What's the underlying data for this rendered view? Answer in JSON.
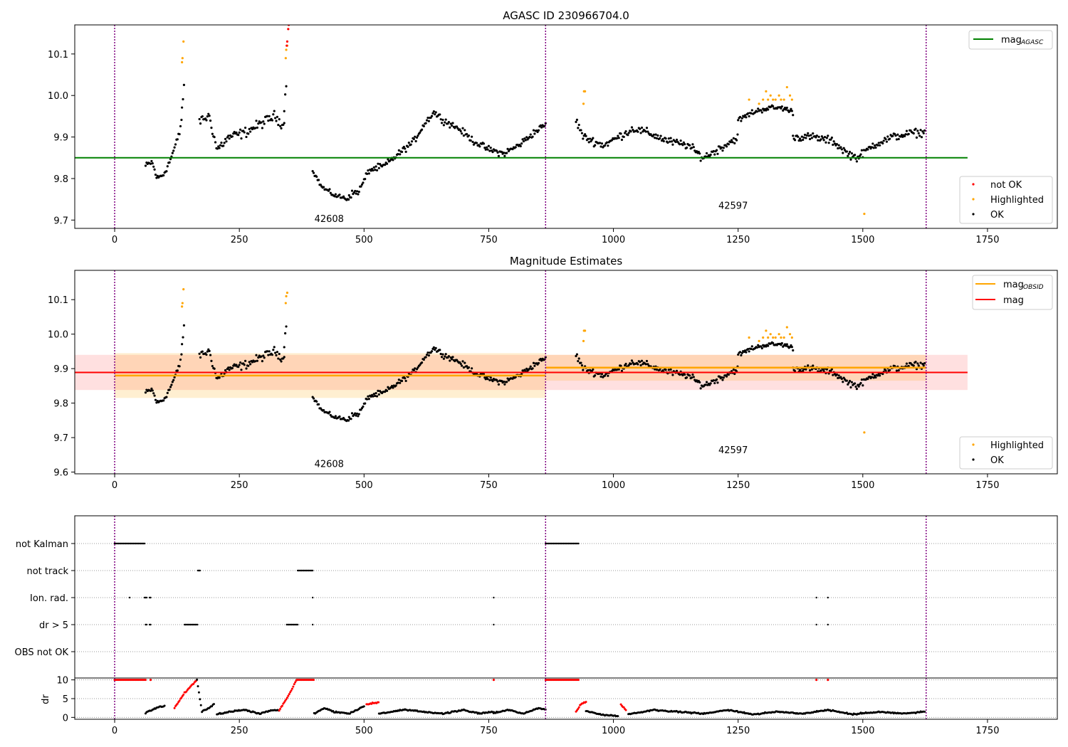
{
  "chart_data": [
    {
      "type": "scatter",
      "title": "AGASC ID 230966704.0",
      "xlabel": "",
      "ylabel": "",
      "xlim": [
        -80,
        1890
      ],
      "ylim": [
        9.68,
        10.17
      ],
      "xticks": [
        0,
        250,
        500,
        750,
        1000,
        1250,
        1500,
        1750
      ],
      "yticks": [
        9.7,
        9.8,
        9.9,
        10.0,
        10.1
      ],
      "grid": false,
      "obsid_boundaries": [
        0,
        864,
        1627
      ],
      "obsid_labels": [
        {
          "text": "42608",
          "x": 430,
          "y": 9.695
        },
        {
          "text": "42597",
          "x": 1240,
          "y": 9.727
        }
      ],
      "lines": [
        {
          "name": "mag_AGASC",
          "legend_main": "mag",
          "legend_sub": "AGASC",
          "color": "#008000",
          "x": [
            -80,
            1710
          ],
          "y": [
            9.85,
            9.85
          ]
        }
      ],
      "legend_top": {
        "placement": "upper right"
      },
      "legend_bottom": {
        "placement": "lower right",
        "entries": [
          {
            "label": "not OK",
            "color": "#ff0000"
          },
          {
            "label": "Highlighted",
            "color": "#ffa500"
          },
          {
            "label": "OK",
            "color": "#000000"
          }
        ]
      },
      "segments": [
        {
          "x0": 62,
          "x1": 135,
          "pts": [
            [
              62,
              9.83
            ],
            [
              75,
              9.84
            ],
            [
              85,
              9.8
            ],
            [
              98,
              9.81
            ],
            [
              110,
              9.84
            ],
            [
              122,
              9.88
            ],
            [
              130,
              9.91
            ],
            [
              135,
              9.95
            ]
          ],
          "noise": 0.012
        },
        {
          "x0": 135,
          "x1": 140,
          "pts": [
            [
              135,
              9.97
            ],
            [
              140,
              10.03
            ]
          ],
          "noise": 0.01
        },
        {
          "x0": 170,
          "x1": 340,
          "pts": [
            [
              170,
              9.94
            ],
            [
              190,
              9.95
            ],
            [
              205,
              9.87
            ],
            [
              230,
              9.9
            ],
            [
              260,
              9.91
            ],
            [
              290,
              9.93
            ],
            [
              320,
              9.95
            ],
            [
              338,
              9.93
            ]
          ],
          "noise": 0.018
        },
        {
          "x0": 340,
          "x1": 345,
          "pts": [
            [
              340,
              9.97
            ],
            [
              345,
              10.04
            ]
          ],
          "noise": 0.01
        },
        {
          "x0": 397,
          "x1": 470,
          "pts": [
            [
              397,
              9.82
            ],
            [
              415,
              9.78
            ],
            [
              440,
              9.76
            ],
            [
              470,
              9.75
            ]
          ],
          "noise": 0.008
        },
        {
          "x0": 470,
          "x1": 780,
          "pts": [
            [
              470,
              9.76
            ],
            [
              490,
              9.77
            ],
            [
              510,
              9.82
            ],
            [
              540,
              9.83
            ],
            [
              570,
              9.86
            ],
            [
              600,
              9.89
            ],
            [
              620,
              9.93
            ],
            [
              640,
              9.96
            ],
            [
              660,
              9.94
            ],
            [
              690,
              9.92
            ],
            [
              720,
              9.89
            ],
            [
              750,
              9.87
            ],
            [
              780,
              9.86
            ]
          ],
          "noise": 0.012
        },
        {
          "x0": 780,
          "x1": 864,
          "pts": [
            [
              780,
              9.86
            ],
            [
              810,
              9.88
            ],
            [
              840,
              9.91
            ],
            [
              864,
              9.93
            ]
          ],
          "noise": 0.012
        },
        {
          "x0": 925,
          "x1": 1250,
          "pts": [
            [
              925,
              9.94
            ],
            [
              940,
              9.9
            ],
            [
              980,
              9.88
            ],
            [
              1010,
              9.9
            ],
            [
              1040,
              9.92
            ],
            [
              1070,
              9.91
            ],
            [
              1110,
              9.89
            ],
            [
              1150,
              9.88
            ],
            [
              1180,
              9.85
            ],
            [
              1210,
              9.87
            ],
            [
              1250,
              9.9
            ]
          ],
          "noise": 0.014
        },
        {
          "x0": 1250,
          "x1": 1360,
          "pts": [
            [
              1250,
              9.94
            ],
            [
              1280,
              9.96
            ],
            [
              1310,
              9.97
            ],
            [
              1340,
              9.97
            ],
            [
              1360,
              9.96
            ]
          ],
          "noise": 0.01
        },
        {
          "x0": 1360,
          "x1": 1625,
          "pts": [
            [
              1360,
              9.9
            ],
            [
              1400,
              9.9
            ],
            [
              1440,
              9.89
            ],
            [
              1470,
              9.86
            ],
            [
              1490,
              9.85
            ],
            [
              1520,
              9.88
            ],
            [
              1560,
              9.9
            ],
            [
              1600,
              9.91
            ],
            [
              1625,
              9.91
            ]
          ],
          "noise": 0.014
        }
      ],
      "highlighted": [
        [
          135,
          10.08
        ],
        [
          136,
          10.09
        ],
        [
          138,
          10.13
        ],
        [
          343,
          10.09
        ],
        [
          344,
          10.11
        ],
        [
          346,
          10.12
        ],
        [
          940,
          9.98
        ],
        [
          941,
          10.01
        ],
        [
          943,
          10.01
        ],
        [
          1272,
          9.99
        ],
        [
          1292,
          9.98
        ],
        [
          1300,
          9.99
        ],
        [
          1306,
          10.01
        ],
        [
          1310,
          9.99
        ],
        [
          1315,
          10.0
        ],
        [
          1320,
          9.99
        ],
        [
          1325,
          9.99
        ],
        [
          1332,
          10.0
        ],
        [
          1336,
          9.99
        ],
        [
          1342,
          9.99
        ],
        [
          1348,
          10.02
        ],
        [
          1354,
          10.0
        ],
        [
          1358,
          9.99
        ],
        [
          1503,
          9.715
        ]
      ],
      "not_ok": [
        [
          345,
          10.12
        ],
        [
          346,
          10.13
        ],
        [
          348,
          10.16
        ],
        [
          349,
          10.17
        ]
      ]
    },
    {
      "type": "scatter",
      "title": "Magnitude Estimates",
      "xlabel": "",
      "ylabel": "",
      "xlim": [
        -80,
        1890
      ],
      "ylim": [
        9.595,
        10.185
      ],
      "xticks": [
        0,
        250,
        500,
        750,
        1000,
        1250,
        1500,
        1750
      ],
      "yticks": [
        9.6,
        9.7,
        9.8,
        9.9,
        10.0,
        10.1
      ],
      "grid": false,
      "obsid_boundaries": [
        0,
        864,
        1627
      ],
      "obsid_labels": [
        {
          "text": "42608",
          "x": 430,
          "y": 9.615
        },
        {
          "text": "42597",
          "x": 1240,
          "y": 9.655
        }
      ],
      "lines": [
        {
          "name": "mag_OBSID",
          "legend_main": "mag",
          "legend_sub": "OBSID",
          "color": "#ffa500",
          "segments": [
            {
              "x": [
                0,
                864
              ],
              "y": [
                9.88,
                9.88
              ],
              "band": [
                9.815,
                9.945
              ]
            },
            {
              "x": [
                864,
                1627
              ],
              "y": [
                9.903,
                9.903
              ],
              "band": [
                9.865,
                9.94
              ]
            }
          ]
        },
        {
          "name": "mag",
          "legend_main": "mag",
          "legend_sub": "",
          "color": "#ff0000",
          "x": [
            -80,
            1710
          ],
          "y": [
            9.889,
            9.889
          ],
          "band": [
            9.838,
            9.94
          ]
        }
      ],
      "legend_top": {
        "placement": "upper right"
      },
      "legend_bottom": {
        "placement": "lower right",
        "entries": [
          {
            "label": "Highlighted",
            "color": "#ffa500"
          },
          {
            "label": "OK",
            "color": "#000000"
          }
        ]
      }
    },
    {
      "type": "scatter",
      "title": "",
      "xlabel": "",
      "ylabel": "dr",
      "xlim": [
        -80,
        1890
      ],
      "flag_rows": [
        "not Kalman",
        "not track",
        "Ion. rad.",
        "dr > 5",
        "OBS not OK"
      ],
      "flag_data": {
        "not Kalman": [
          [
            0,
            60
          ],
          [
            864,
            930
          ]
        ],
        "not track": [
          [
            167,
            172
          ],
          [
            367,
            397
          ]
        ],
        "Ion. rad.": [
          [
            30,
            30
          ],
          [
            60,
            65
          ],
          [
            70,
            72
          ],
          [
            397,
            397
          ],
          [
            760,
            760
          ],
          [
            1407,
            1407
          ],
          [
            1430,
            1430
          ]
        ],
        "dr > 5": [
          [
            62,
            65
          ],
          [
            70,
            72
          ],
          [
            140,
            167
          ],
          [
            345,
            367
          ],
          [
            397,
            397
          ],
          [
            760,
            760
          ],
          [
            1407,
            1407
          ],
          [
            1430,
            1430
          ]
        ],
        "OBS not OK": []
      },
      "dr_yticks": [
        0,
        5,
        10
      ],
      "dr_ylim": [
        -0.5,
        10.5
      ],
      "dr_segments": [
        {
          "x0": 0,
          "x1": 62,
          "flat": 10,
          "red": true
        },
        {
          "x0": 62,
          "x1": 100,
          "pts": [
            [
              62,
              1.2
            ],
            [
              75,
              2.0
            ],
            [
              88,
              2.8
            ],
            [
              100,
              3.0
            ]
          ],
          "red": false
        },
        {
          "x0": 120,
          "x1": 165,
          "pts": [
            [
              120,
              2.5
            ],
            [
              140,
              6.5
            ],
            [
              165,
              10
            ]
          ],
          "red": true
        },
        {
          "x0": 165,
          "x1": 200,
          "pts": [
            [
              165,
              10
            ],
            [
              175,
              1.5
            ],
            [
              190,
              2.5
            ],
            [
              200,
              3.8
            ]
          ],
          "red": false
        },
        {
          "x0": 205,
          "x1": 330,
          "pts": [
            [
              205,
              0.8
            ],
            [
              230,
              1.5
            ],
            [
              260,
              2.0
            ],
            [
              290,
              1.0
            ],
            [
              310,
              1.8
            ],
            [
              330,
              2.0
            ]
          ],
          "red": false
        },
        {
          "x0": 330,
          "x1": 365,
          "pts": [
            [
              330,
              2.0
            ],
            [
              345,
              5.0
            ],
            [
              365,
              10
            ]
          ],
          "red": true
        },
        {
          "x0": 365,
          "x1": 400,
          "flat": 10,
          "red": true
        },
        {
          "x0": 400,
          "x1": 500,
          "pts": [
            [
              400,
              1.0
            ],
            [
              420,
              2.5
            ],
            [
              440,
              1.5
            ],
            [
              470,
              1.0
            ],
            [
              500,
              3.0
            ]
          ],
          "red": false
        },
        {
          "x0": 505,
          "x1": 530,
          "pts": [
            [
              505,
              3.5
            ],
            [
              530,
              4.0
            ]
          ],
          "red": true
        },
        {
          "x0": 530,
          "x1": 760,
          "pts": [
            [
              530,
              1.0
            ],
            [
              580,
              2.0
            ],
            [
              620,
              1.5
            ],
            [
              660,
              1.0
            ],
            [
              700,
              2.0
            ],
            [
              730,
              1.0
            ],
            [
              760,
              1.5
            ]
          ],
          "red": false
        },
        {
          "x0": 760,
          "x1": 864,
          "pts": [
            [
              760,
              1.2
            ],
            [
              790,
              2.0
            ],
            [
              820,
              1.0
            ],
            [
              850,
              2.5
            ],
            [
              864,
              2.0
            ]
          ],
          "red": false
        },
        {
          "x0": 864,
          "x1": 930,
          "flat": 10,
          "red": true
        },
        {
          "x0": 925,
          "x1": 945,
          "pts": [
            [
              925,
              1.5
            ],
            [
              935,
              3.5
            ],
            [
              945,
              4.2
            ]
          ],
          "red": true
        },
        {
          "x0": 945,
          "x1": 1010,
          "pts": [
            [
              945,
              1.8
            ],
            [
              965,
              1.0
            ],
            [
              990,
              0.5
            ],
            [
              1010,
              0.5
            ]
          ],
          "red": false
        },
        {
          "x0": 1015,
          "x1": 1025,
          "pts": [
            [
              1015,
              3.5
            ],
            [
              1025,
              2.0
            ]
          ],
          "red": true
        },
        {
          "x0": 1030,
          "x1": 1625,
          "pts": [
            [
              1030,
              0.8
            ],
            [
              1080,
              2.0
            ],
            [
              1130,
              1.5
            ],
            [
              1180,
              1.0
            ],
            [
              1230,
              2.0
            ],
            [
              1280,
              0.8
            ],
            [
              1330,
              1.5
            ],
            [
              1380,
              1.0
            ],
            [
              1430,
              2.0
            ],
            [
              1480,
              0.8
            ],
            [
              1530,
              1.5
            ],
            [
              1580,
              1.0
            ],
            [
              1625,
              1.5
            ]
          ],
          "red": false
        }
      ],
      "dr_red_points": [
        [
          72,
          10
        ],
        [
          760,
          10
        ],
        [
          1407,
          10
        ],
        [
          1430,
          10
        ]
      ],
      "obsid_boundaries": [
        0,
        864,
        1627
      ]
    }
  ]
}
